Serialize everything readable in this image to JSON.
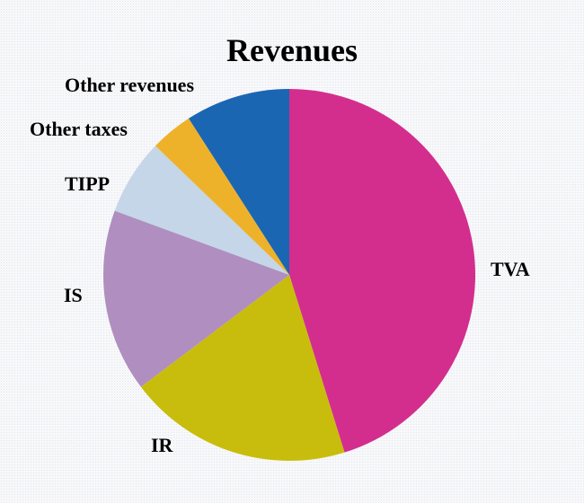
{
  "chart_data": {
    "type": "pie",
    "title": "Revenues",
    "start_angle_deg": 0,
    "direction": "clockwise",
    "slices": [
      {
        "label": "TVA",
        "value": 45.2,
        "color": "#d32e8e"
      },
      {
        "label": "IR",
        "value": 19.5,
        "color": "#c8bd0c"
      },
      {
        "label": "IS",
        "value": 15.9,
        "color": "#b08ec0"
      },
      {
        "label": "TIPP",
        "value": 6.6,
        "color": "#c4d6e8"
      },
      {
        "label": "Other taxes",
        "value": 3.7,
        "color": "#eeb22a"
      },
      {
        "label": "Other revenues",
        "value": 9.1,
        "color": "#1b66b2"
      }
    ],
    "legend": "none (labels placed beside slices)"
  },
  "labels": {
    "tva": "TVA",
    "ir": "IR",
    "is": "IS",
    "tipp": "TIPP",
    "other_taxes": "Other taxes",
    "other_revenues": "Other revenues"
  }
}
